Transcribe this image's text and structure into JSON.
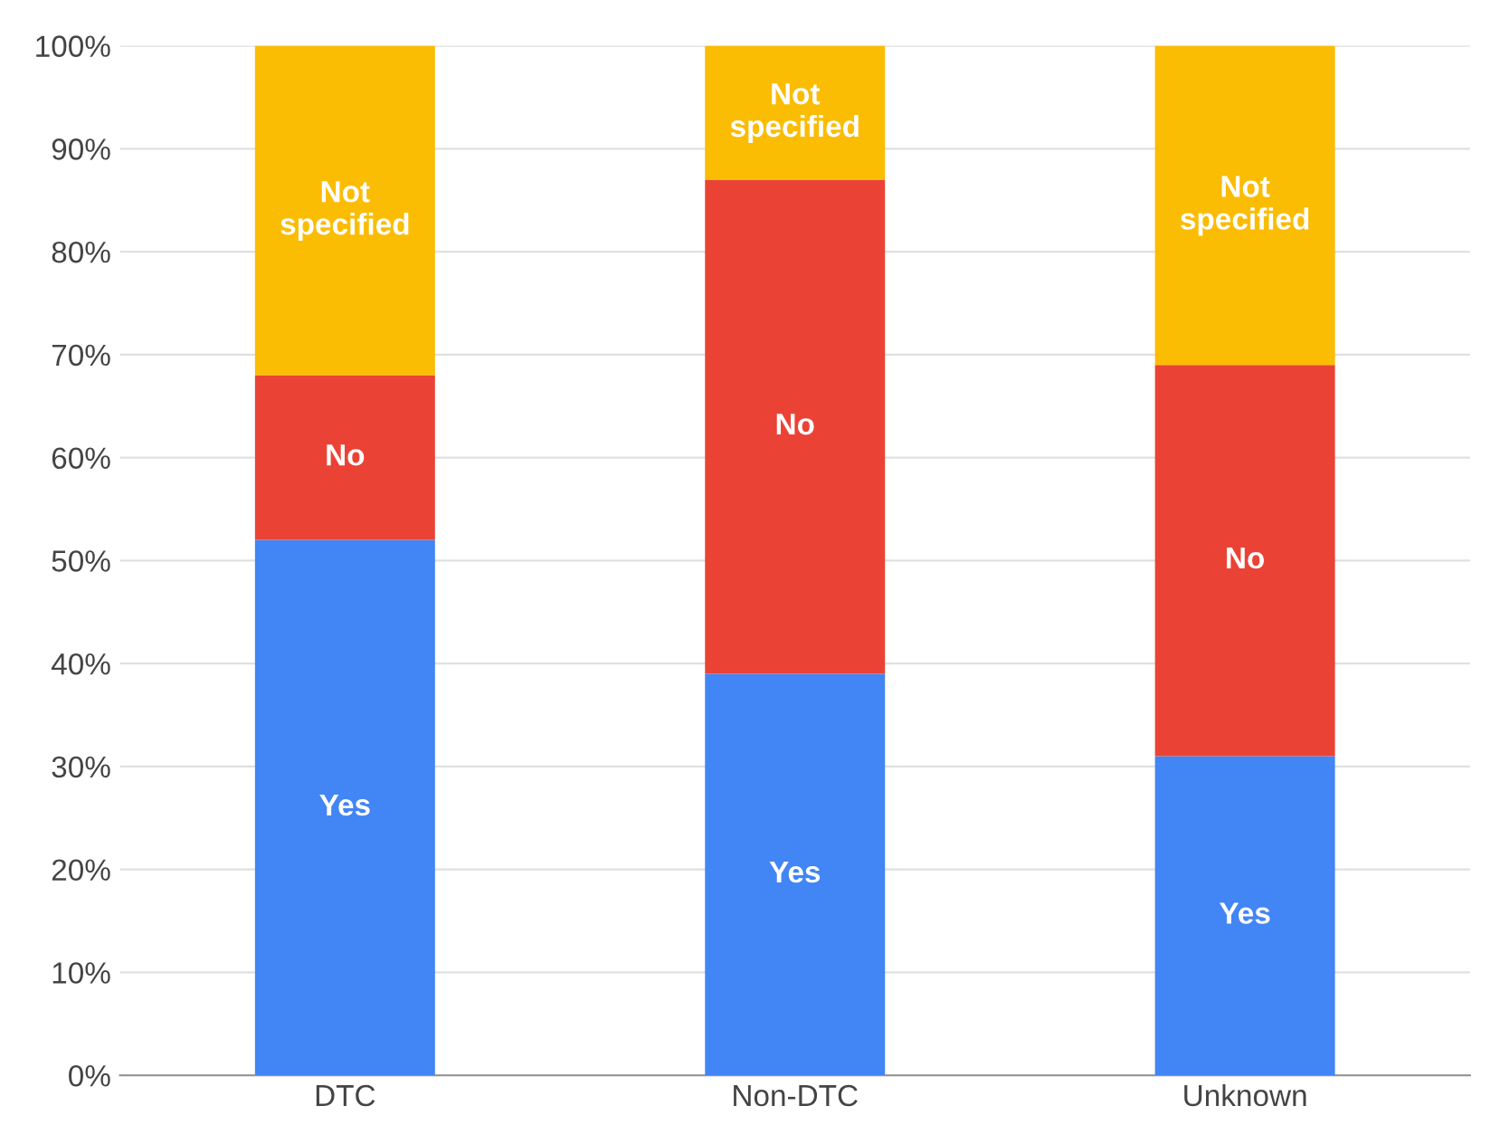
{
  "chart_data": {
    "type": "bar",
    "stacked": true,
    "categories": [
      "DTC",
      "Non-DTC",
      "Unknown"
    ],
    "series": [
      {
        "name": "Yes",
        "color": "#4285f4",
        "values": [
          52,
          39,
          31
        ]
      },
      {
        "name": "No",
        "color": "#ea4335",
        "values": [
          16,
          48,
          38
        ]
      },
      {
        "name": "Not specified",
        "color": "#fbbc04",
        "values": [
          32,
          13,
          31
        ]
      }
    ],
    "ylim": [
      0,
      100
    ],
    "yticks": [
      {
        "value": 0,
        "label": "0%"
      },
      {
        "value": 10,
        "label": "10%"
      },
      {
        "value": 20,
        "label": "20%"
      },
      {
        "value": 30,
        "label": "30%"
      },
      {
        "value": 40,
        "label": "40%"
      },
      {
        "value": 50,
        "label": "50%"
      },
      {
        "value": 60,
        "label": "60%"
      },
      {
        "value": 70,
        "label": "70%"
      },
      {
        "value": 80,
        "label": "80%"
      },
      {
        "value": 90,
        "label": "90%"
      },
      {
        "value": 100,
        "label": "100%"
      }
    ],
    "grid": "y",
    "legend": false
  }
}
